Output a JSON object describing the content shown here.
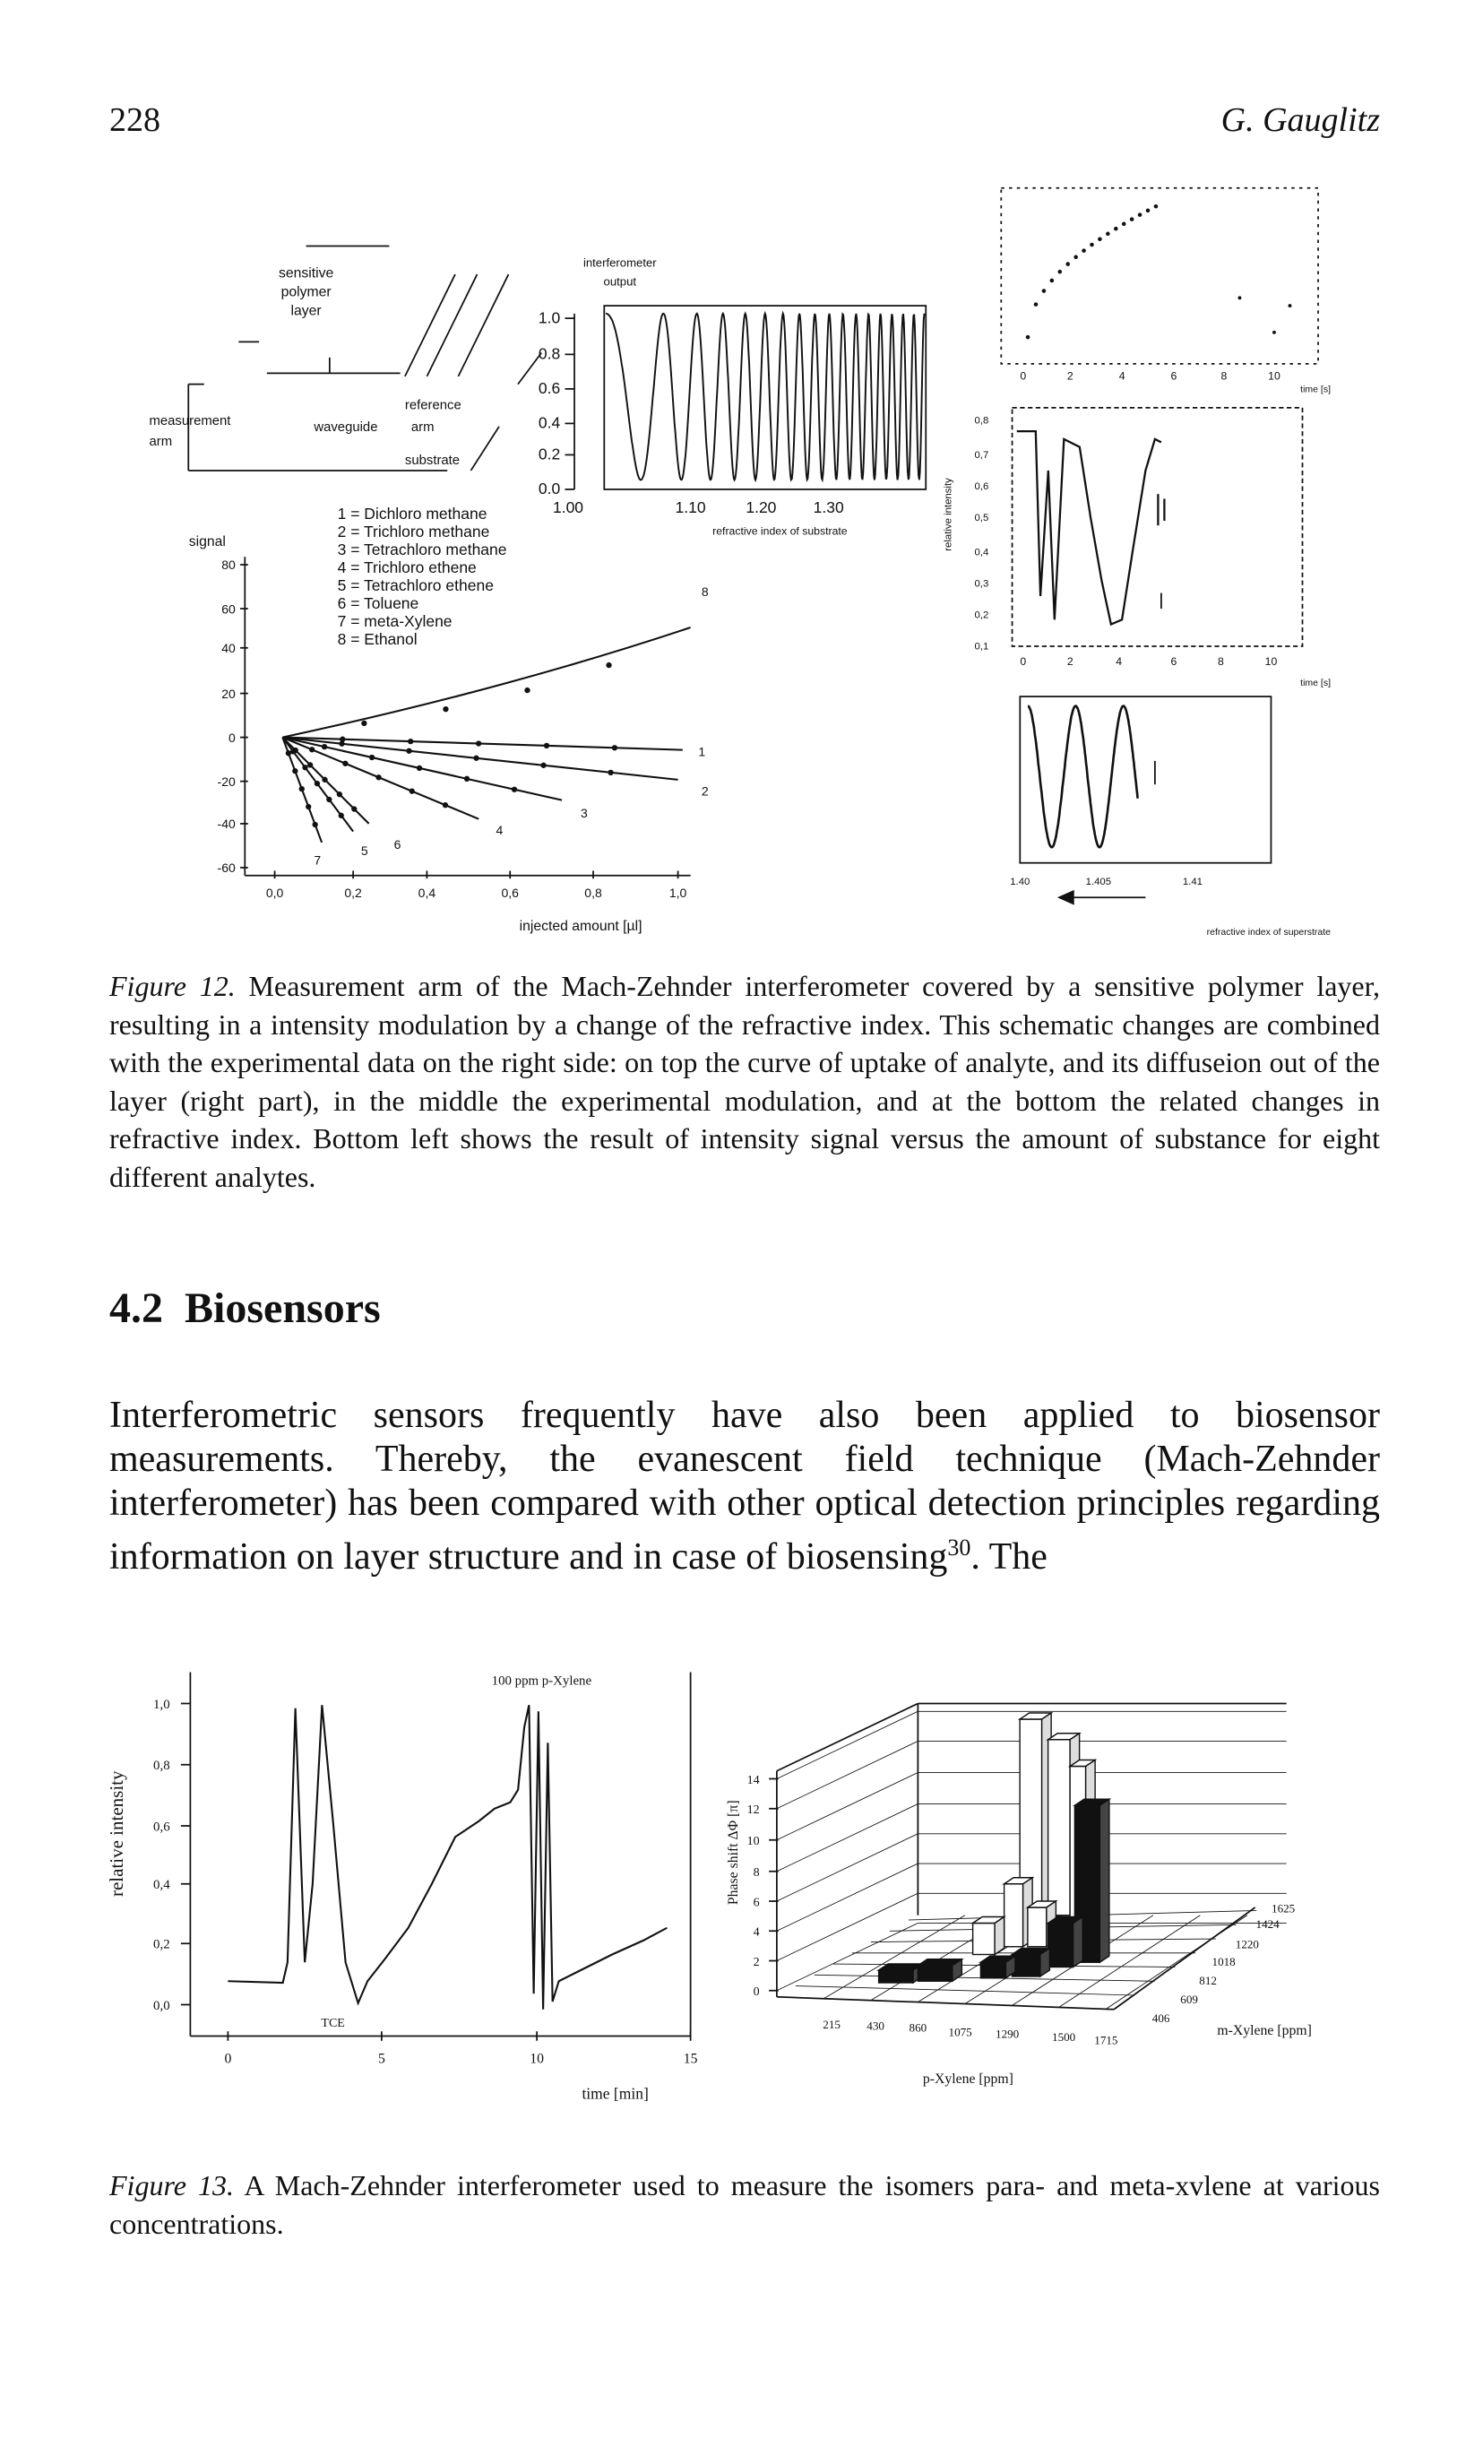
{
  "header": {
    "page_number": "228",
    "running_head": "G. Gauglitz"
  },
  "figure_12": {
    "schematic": {
      "polymer_label": [
        "sensitive",
        "polymer",
        "layer"
      ],
      "output_label": [
        "interferometer",
        "output"
      ],
      "reference_label": "reference",
      "measurement_label": [
        "measurement",
        "arm"
      ],
      "waveguide_label": [
        "waveguide",
        "arm"
      ],
      "substrate_label": "substrate"
    },
    "interferometer_plot": {
      "y_ticks": [
        "1.0",
        "0.8",
        "0.6",
        "0.4",
        "0.2",
        "0.0"
      ],
      "x_ticks": [
        "1.00",
        "1.10",
        "1.20",
        "1.30"
      ],
      "x_label": "refractive index of substrate"
    },
    "legend": [
      "1 = Dichloro methane",
      "2 = Trichloro methane",
      "3 = Tetrachloro methane",
      "4 = Trichloro ethene",
      "5 = Tetrachloro ethene",
      "6 = Toluene",
      "7 = meta-Xylene",
      "8 = Ethanol"
    ],
    "signal_plot": {
      "y_label": "signal",
      "y_ticks": [
        "80",
        "60",
        "40",
        "20",
        "0",
        "-20",
        "-40",
        "-60"
      ],
      "x_ticks": [
        "0,0",
        "0,2",
        "0,4",
        "0,6",
        "0,8",
        "1,0"
      ],
      "x_label": "injected amount [µl]",
      "line_labels": [
        "1",
        "2",
        "3",
        "4",
        "5",
        "6",
        "7",
        "8"
      ]
    },
    "uptake_plot": {
      "x_ticks": [
        "0",
        "2",
        "4",
        "6",
        "8",
        "10"
      ],
      "x_label": "time [s]"
    },
    "modulation_plot": {
      "y_label": "relative intensity",
      "y_ticks": [
        "0,8",
        "0,7",
        "0,6",
        "0,5",
        "0,4",
        "0,3",
        "0,2",
        "0,1"
      ],
      "x_ticks": [
        "0",
        "2",
        "4",
        "6",
        "8",
        "10"
      ],
      "x_label": "time [s]"
    },
    "index_plot": {
      "x_ticks": [
        "1.40",
        "1.405",
        "1.41"
      ],
      "x_label": "refractive index of superstrate"
    },
    "caption": {
      "label": "Figure 12.",
      "text": "Measurement arm of the Mach-Zehnder interferometer covered by a sensitive polymer layer, resulting in a intensity modulation by a change of the refractive index. This schematic changes are combined with the experimental data on the right side: on top the curve of uptake of analyte, and its diffuseion out of the layer (right part), in the middle the experimental modulation, and at the bottom the related changes in refractive index. Bottom left shows the result of intensity signal versus the amount of substance for eight different analytes."
    }
  },
  "section": {
    "number": "4.2",
    "title": "Biosensors"
  },
  "paragraph": {
    "text": "Interferometric sensors frequently have also been applied to biosensor measurements. Thereby, the evanescent field technique (Mach-Zehnder interferometer) has been compared with other optical detection principles regarding information on layer structure and in case of biosensing",
    "reference": "30",
    "tail": ". The"
  },
  "figure_13": {
    "intensity_plot": {
      "title": "100 ppm p-Xylene",
      "y_label": "relative intensity",
      "y_ticks": [
        "1,0",
        "0,8",
        "0,6",
        "0,4",
        "0,2",
        "0,0"
      ],
      "x_ticks": [
        "0",
        "5",
        "10",
        "15"
      ],
      "x_label": "time [min]",
      "annotation": "TCE"
    },
    "bar_plot": {
      "z_label": "Phase shift ΔΦ [π]",
      "z_ticks": [
        "14",
        "12",
        "10",
        "8",
        "6",
        "4",
        "2",
        "0"
      ],
      "x_ticks": [
        "215",
        "430",
        "860",
        "1075",
        "1290",
        "1500",
        "1715"
      ],
      "x_label": "p-Xylene [ppm]",
      "y_ticks": [
        "1625",
        "1424",
        "1220",
        "1018",
        "812",
        "609",
        "406"
      ],
      "y_label": "m-Xylene [ppm]"
    },
    "caption": {
      "label": "Figure 13.",
      "text": "A Mach-Zehnder interferometer used to measure the isomers para- and meta-xvlene at various concentrations."
    }
  }
}
